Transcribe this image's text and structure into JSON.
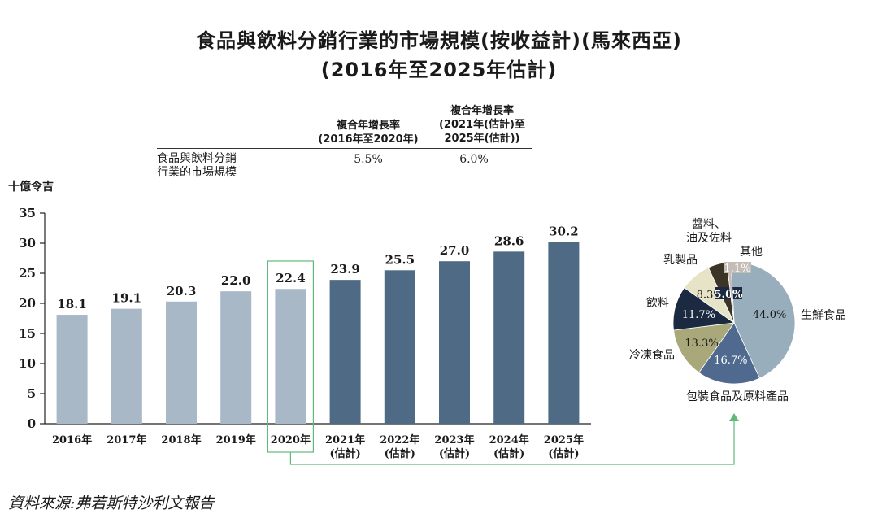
{
  "header": {
    "title_line1": "食品與飲料分銷行業的市場規模(按收益計)(馬來西亞)",
    "title_line2": "(2016年至2025年估計)"
  },
  "cagr_table": {
    "col1_header": [
      "複合年增長率",
      "(2016年至2020年)"
    ],
    "col2_header": [
      "複合年增長率",
      "(2021年(估計)至",
      "2025年(估計))"
    ],
    "row_label": [
      "食品與飲料分銷",
      "行業的市場規模"
    ],
    "col1_value": "5.5%",
    "col2_value": "6.0%"
  },
  "chart_data": [
    {
      "type": "bar",
      "title": "食品與飲料分銷行業的市場規模(按收益計)(馬來西亞)",
      "ylabel": "十億令吉",
      "ylim": [
        0,
        35
      ],
      "yticks": [
        0,
        5,
        10,
        15,
        20,
        25,
        30,
        35
      ],
      "categories": [
        [
          "2016年"
        ],
        [
          "2017年"
        ],
        [
          "2018年"
        ],
        [
          "2019年"
        ],
        [
          "2020年"
        ],
        [
          "2021年",
          "(估計)"
        ],
        [
          "2022年",
          "(估計)"
        ],
        [
          "2023年",
          "(估計)"
        ],
        [
          "2024年",
          "(估計)"
        ],
        [
          "2025年",
          "(估計)"
        ]
      ],
      "values": [
        18.1,
        19.1,
        20.3,
        22.0,
        22.4,
        23.9,
        25.5,
        27.0,
        28.6,
        30.2
      ],
      "value_labels": [
        "18.1",
        "19.1",
        "20.3",
        "22.0",
        "22.4",
        "23.9",
        "25.5",
        "27.0",
        "28.6",
        "30.2"
      ],
      "highlight_category": "2020年",
      "colors": {
        "actual": "#a8b8c6",
        "estimate": "#4f6a85"
      }
    },
    {
      "type": "pie",
      "title": "2020年",
      "slices": [
        {
          "label": "生鮮食品",
          "value": 44.0,
          "value_label": "44.0%",
          "color": "#98aebd"
        },
        {
          "label": "包裝食品及原料產品",
          "value": 16.7,
          "value_label": "16.7%",
          "color": "#4f6a8e"
        },
        {
          "label": "冷凍食品",
          "value": 13.3,
          "value_label": "13.3%",
          "color": "#a8a87a"
        },
        {
          "label": "飲料",
          "value": 11.7,
          "value_label": "11.7%",
          "color": "#1b2a40"
        },
        {
          "label": "乳製品",
          "value": 8.3,
          "value_label": "8.3%",
          "color": "#e7e3c6"
        },
        {
          "label": "醬料、油及佐料",
          "value": 5.0,
          "value_label": "5.0%",
          "color": "#3b3528"
        },
        {
          "label": "其他",
          "value": 1.1,
          "value_label": "1.1%",
          "color": "#c4bcb6"
        }
      ],
      "connector_color": "#5fb97a"
    }
  ],
  "footer": {
    "unit_label": "十億令吉",
    "source": "資料來源:弗若斯特沙利文報告"
  }
}
